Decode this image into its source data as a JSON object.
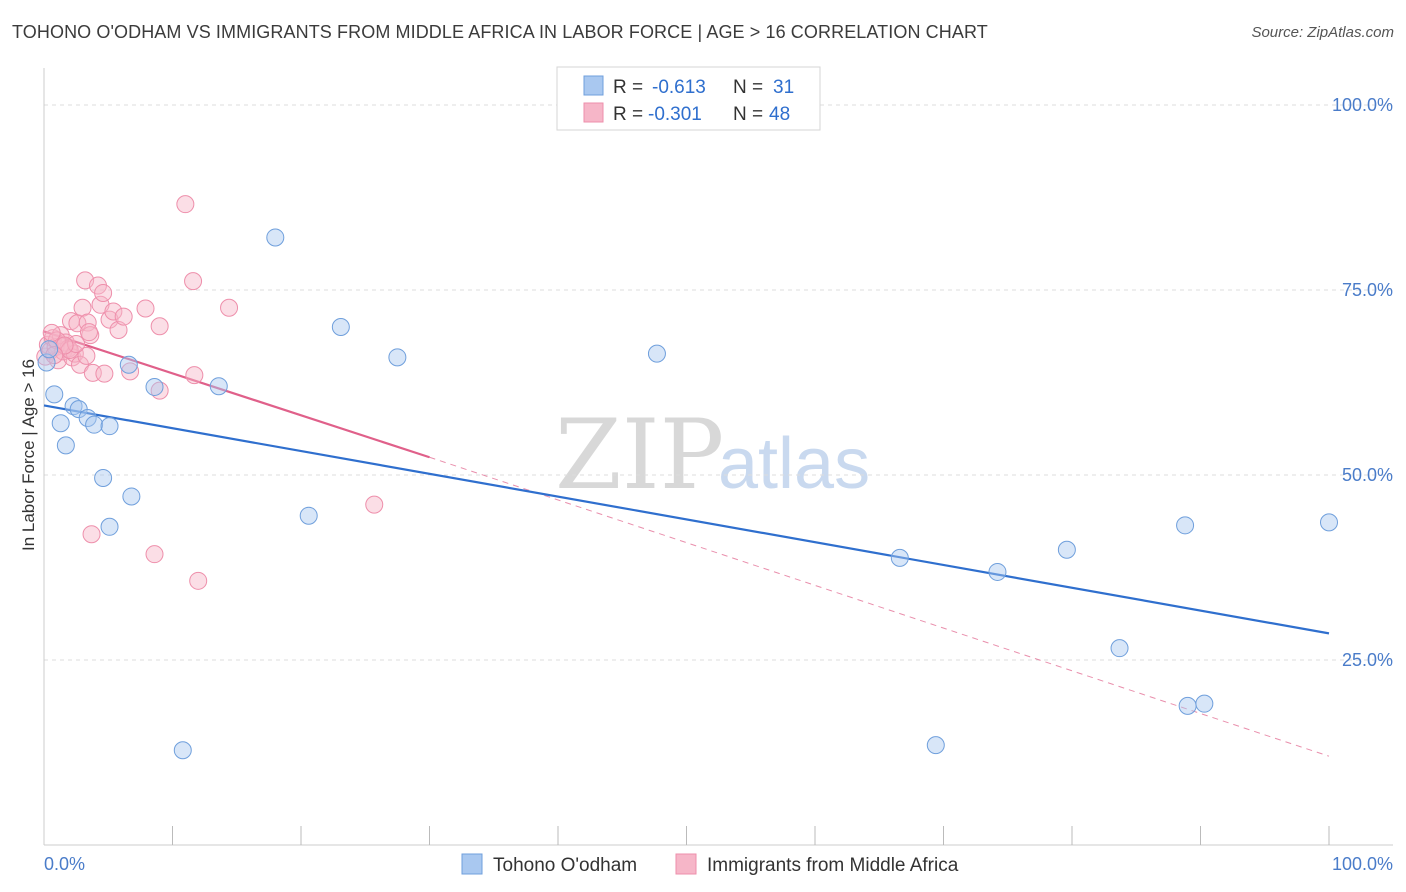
{
  "header": {
    "title": "TOHONO O'ODHAM VS IMMIGRANTS FROM MIDDLE AFRICA IN LABOR FORCE | AGE > 16 CORRELATION CHART",
    "source": "Source: ZipAtlas.com"
  },
  "watermark": {
    "zip": "ZIP",
    "atlas": "atlas"
  },
  "colors": {
    "blue_fill": "#a9c8f0",
    "blue_stroke": "#6f9fdc",
    "blue_line": "#2f6fce",
    "pink_fill": "#f6b6c8",
    "pink_stroke": "#ee8fab",
    "pink_line": "#e0608a",
    "grid": "#dddddd",
    "tick_label": "#4a7cc9"
  },
  "legend": {
    "rows": [
      {
        "r_label": "R =",
        "r_value": "-0.613",
        "n_label": "N =",
        "n_value": "31"
      },
      {
        "r_label": "R =",
        "r_value": "-0.301",
        "n_label": "N =",
        "n_value": "48"
      }
    ]
  },
  "chart_data": {
    "type": "scatter",
    "title": "TOHONO O'ODHAM VS IMMIGRANTS FROM MIDDLE AFRICA IN LABOR FORCE | AGE > 16 CORRELATION CHART",
    "xlabel": "",
    "ylabel": "In Labor Force | Age > 16",
    "xlim": [
      0,
      100
    ],
    "ylim": [
      0,
      105
    ],
    "x_tick_labels": [
      "0.0%",
      "100.0%"
    ],
    "y_ticks": [
      25,
      50,
      75,
      100
    ],
    "y_tick_labels": [
      "25.0%",
      "50.0%",
      "75.0%",
      "100.0%"
    ],
    "grid": true,
    "legend_position": "top-center",
    "series": [
      {
        "name": "Tohono O'odham",
        "color": "blue",
        "points": [
          [
            0.2,
            65.2
          ],
          [
            0.8,
            60.9
          ],
          [
            1.3,
            57.0
          ],
          [
            1.7,
            54.0
          ],
          [
            2.3,
            59.3
          ],
          [
            2.7,
            58.9
          ],
          [
            3.4,
            57.7
          ],
          [
            3.9,
            56.8
          ],
          [
            4.6,
            49.6
          ],
          [
            5.1,
            56.6
          ],
          [
            5.1,
            43.0
          ],
          [
            6.6,
            64.9
          ],
          [
            6.8,
            47.1
          ],
          [
            8.6,
            61.9
          ],
          [
            10.8,
            12.8
          ],
          [
            13.6,
            62.0
          ],
          [
            18.0,
            82.1
          ],
          [
            20.6,
            44.5
          ],
          [
            23.1,
            70.0
          ],
          [
            27.5,
            65.9
          ],
          [
            47.7,
            66.4
          ],
          [
            66.6,
            38.8
          ],
          [
            69.4,
            13.5
          ],
          [
            74.2,
            36.9
          ],
          [
            79.6,
            39.9
          ],
          [
            83.7,
            26.6
          ],
          [
            88.8,
            43.2
          ],
          [
            89.0,
            18.8
          ],
          [
            90.3,
            19.1
          ],
          [
            100.0,
            43.6
          ],
          [
            0.4,
            67.0
          ]
        ],
        "trend": {
          "x": [
            0,
            100
          ],
          "y": [
            59.4,
            28.6
          ]
        }
      },
      {
        "name": "Immigrants from Middle Africa",
        "color": "pink",
        "points": [
          [
            0.1,
            66.0
          ],
          [
            0.3,
            67.6
          ],
          [
            0.5,
            66.8
          ],
          [
            0.7,
            68.5
          ],
          [
            0.9,
            67.3
          ],
          [
            1.1,
            65.5
          ],
          [
            1.3,
            68.9
          ],
          [
            1.5,
            66.7
          ],
          [
            1.7,
            67.9
          ],
          [
            1.9,
            67.1
          ],
          [
            2.1,
            70.8
          ],
          [
            2.2,
            65.9
          ],
          [
            2.4,
            66.4
          ],
          [
            2.6,
            70.5
          ],
          [
            2.8,
            64.9
          ],
          [
            3.0,
            72.6
          ],
          [
            3.2,
            76.3
          ],
          [
            3.3,
            66.1
          ],
          [
            3.4,
            70.6
          ],
          [
            3.6,
            68.9
          ],
          [
            3.7,
            42.0
          ],
          [
            3.8,
            63.8
          ],
          [
            4.2,
            75.6
          ],
          [
            4.4,
            73.0
          ],
          [
            4.6,
            74.6
          ],
          [
            4.7,
            63.7
          ],
          [
            5.1,
            71.0
          ],
          [
            5.4,
            72.1
          ],
          [
            5.8,
            69.6
          ],
          [
            6.2,
            71.4
          ],
          [
            6.7,
            64.0
          ],
          [
            7.9,
            72.5
          ],
          [
            8.6,
            39.3
          ],
          [
            9.0,
            61.4
          ],
          [
            9.0,
            70.1
          ],
          [
            11.0,
            86.6
          ],
          [
            11.6,
            76.2
          ],
          [
            11.7,
            63.5
          ],
          [
            12.0,
            35.7
          ],
          [
            14.4,
            72.6
          ],
          [
            25.7,
            46.0
          ],
          [
            1.0,
            68.2
          ],
          [
            2.0,
            66.9
          ],
          [
            2.5,
            67.7
          ],
          [
            0.6,
            69.2
          ],
          [
            1.6,
            67.5
          ],
          [
            3.5,
            69.3
          ],
          [
            0.8,
            66.2
          ]
        ],
        "trend": {
          "x": [
            0,
            30
          ],
          "y": [
            69.4,
            52.4
          ]
        },
        "trend_dashed": {
          "x": [
            30,
            100
          ],
          "y": [
            52.4,
            12.0
          ]
        }
      }
    ]
  },
  "bottom_legend": {
    "items": [
      {
        "label": "Tohono O'odham"
      },
      {
        "label": "Immigrants from Middle Africa"
      }
    ]
  }
}
